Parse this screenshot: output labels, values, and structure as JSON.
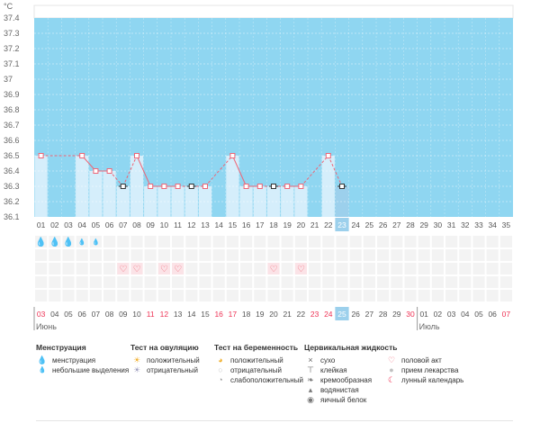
{
  "chart_data": {
    "type": "line",
    "ylabel": "°C",
    "ylim": [
      36.1,
      37.4
    ],
    "yticks": [
      "36.1",
      "36.2",
      "36.3",
      "36.4",
      "36.5",
      "36.6",
      "36.7",
      "36.8",
      "36.9",
      "37",
      "37.1",
      "37.2",
      "37.3",
      "37.4"
    ],
    "cycle_days": [
      "01",
      "02",
      "03",
      "04",
      "05",
      "06",
      "07",
      "08",
      "09",
      "10",
      "11",
      "12",
      "13",
      "14",
      "15",
      "16",
      "17",
      "18",
      "19",
      "20",
      "21",
      "22",
      "23",
      "24",
      "25",
      "26",
      "27",
      "28",
      "29",
      "30",
      "31",
      "32",
      "33",
      "34",
      "35"
    ],
    "calendar_dates": [
      "03",
      "04",
      "05",
      "06",
      "07",
      "08",
      "09",
      "10",
      "11",
      "12",
      "13",
      "14",
      "15",
      "16",
      "17",
      "18",
      "19",
      "20",
      "21",
      "22",
      "23",
      "24",
      "25",
      "26",
      "27",
      "28",
      "29",
      "30",
      "01",
      "02",
      "03",
      "04",
      "05",
      "06",
      "07"
    ],
    "calendar_red": [
      0,
      8,
      9,
      13,
      14,
      20,
      21,
      27,
      34
    ],
    "months": [
      {
        "label": "Июнь",
        "at": 0
      },
      {
        "label": "Июль",
        "at": 28
      }
    ],
    "today_index": 22,
    "temperature": [
      36.5,
      null,
      null,
      36.5,
      36.4,
      36.4,
      36.3,
      36.5,
      36.3,
      36.3,
      36.3,
      36.3,
      36.3,
      null,
      36.5,
      36.3,
      36.3,
      36.3,
      36.3,
      36.3,
      null,
      36.5,
      36.3
    ],
    "excluded_days": [
      6,
      11,
      17,
      22
    ],
    "menstruation_heavy": [
      0,
      1,
      2
    ],
    "menstruation_light": [
      3,
      4
    ],
    "intercourse": [
      6,
      7,
      9,
      10,
      17,
      19
    ]
  },
  "legend": {
    "menstruation": {
      "title": "Менструация",
      "items": [
        "менструация",
        "небольшие выделения"
      ]
    },
    "ovulation": {
      "title": "Тест на овуляцию",
      "items": [
        "положительный",
        "отрицательный"
      ]
    },
    "pregnancy": {
      "title": "Тест на беременность",
      "items": [
        "положительный",
        "отрицательный",
        "слабоположительный"
      ]
    },
    "cervical": {
      "title": "Цервикальная жидкость",
      "items": [
        "сухо",
        "клейкая",
        "кремообразная",
        "водянистая",
        "яичный белок"
      ]
    },
    "other": {
      "items": [
        "половой акт",
        "прием лекарства",
        "лунный календарь"
      ]
    }
  },
  "colors": {
    "sky": "#8fd6f1",
    "bar": "#d5eefb",
    "line": "#ee6677",
    "red": "#ee3355",
    "today": "#9cd0ec"
  }
}
